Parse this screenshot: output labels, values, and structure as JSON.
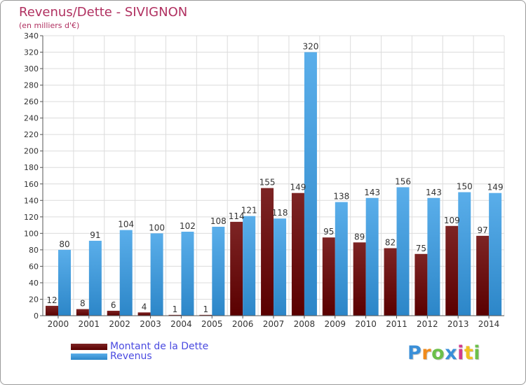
{
  "title": "Revenus/Dette - SIVIGNON",
  "subtitle": "(en milliers d'€)",
  "legend": {
    "dette_label": "Montant de la Dette",
    "revenus_label": "Revenus"
  },
  "logo": {
    "text": "Proxiti",
    "letter_colors": [
      "#3a8fd8",
      "#f08a1c",
      "#6cc04a",
      "#3a8fd8",
      "#d23b8c",
      "#f0c020",
      "#6cc04a"
    ]
  },
  "colors": {
    "dette_top": "#7d2424",
    "dette_bottom": "#5a0000",
    "revenus_top": "#5aaeea",
    "revenus_bottom": "#2c86c8",
    "grid": "#dcdcdc",
    "axis_text": "#333333",
    "title": "#b03060"
  },
  "chart_data": {
    "type": "bar",
    "title": "Revenus/Dette - SIVIGNON",
    "subtitle": "(en milliers d'€)",
    "xlabel": "",
    "ylabel": "",
    "ylim": [
      0,
      340
    ],
    "yticks": [
      0,
      20,
      40,
      60,
      80,
      100,
      120,
      140,
      160,
      180,
      200,
      220,
      240,
      260,
      280,
      300,
      320,
      340
    ],
    "grid": true,
    "legend_position": "bottom-left",
    "categories": [
      "2000",
      "2001",
      "2002",
      "2003",
      "2004",
      "2005",
      "2006",
      "2007",
      "2008",
      "2009",
      "2010",
      "2011",
      "2012",
      "2013",
      "2014"
    ],
    "series": [
      {
        "name": "Montant de la Dette",
        "values": [
          12,
          8,
          6,
          4,
          1,
          1,
          114,
          155,
          149,
          95,
          89,
          82,
          75,
          109,
          97
        ]
      },
      {
        "name": "Revenus",
        "values": [
          80,
          91,
          104,
          100,
          102,
          108,
          121,
          118,
          320,
          138,
          143,
          156,
          143,
          150,
          149
        ]
      }
    ]
  }
}
